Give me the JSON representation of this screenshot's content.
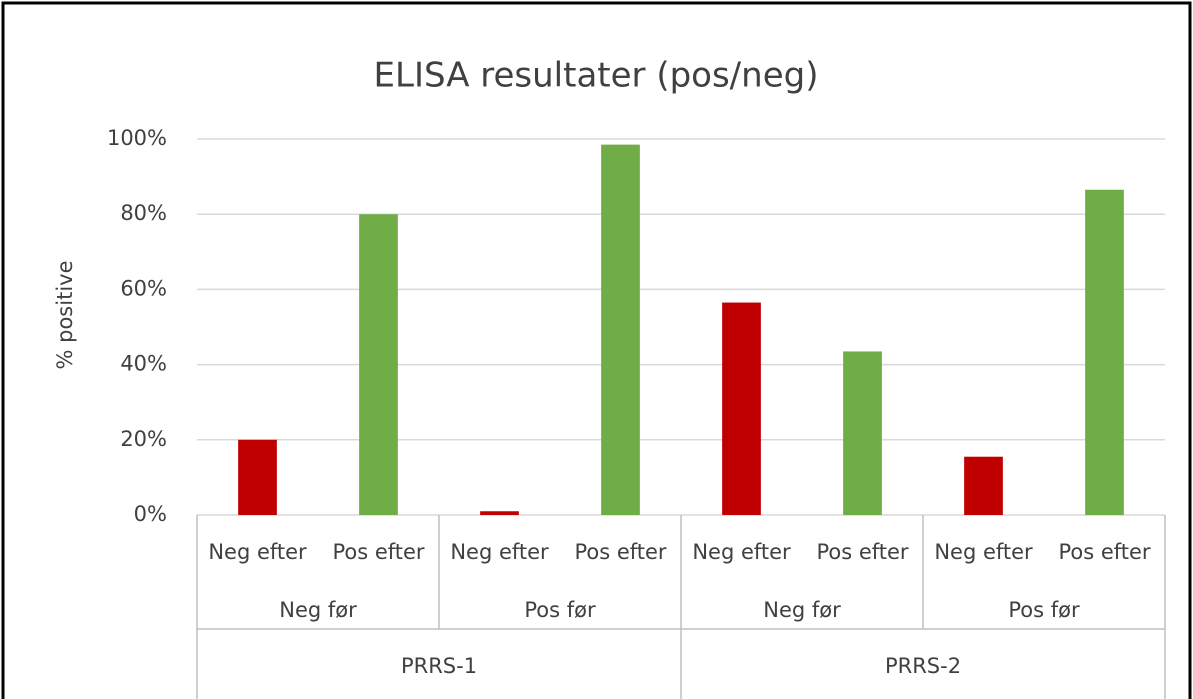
{
  "chart_data": {
    "type": "bar",
    "title": "ELISA resultater (pos/neg)",
    "y_label": "% positive",
    "groups": [
      {
        "name": "PRRS-1",
        "subgroups": [
          {
            "name": "Neg før",
            "categories": [
              "Neg efter",
              "Pos efter"
            ]
          },
          {
            "name": "Pos før",
            "categories": [
              "Neg efter",
              "Pos efter"
            ]
          }
        ]
      },
      {
        "name": "PRRS-2",
        "subgroups": [
          {
            "name": "Neg før",
            "categories": [
              "Neg efter",
              "Pos efter"
            ]
          },
          {
            "name": "Pos før",
            "categories": [
              "Neg efter",
              "Pos efter"
            ]
          }
        ]
      }
    ],
    "values": [
      20,
      80,
      1,
      98.5,
      56.5,
      43.5,
      15.5,
      86.5
    ],
    "colors": [
      "#c00000",
      "#70ad47",
      "#c00000",
      "#70ad47",
      "#c00000",
      "#70ad47",
      "#c00000",
      "#70ad47"
    ],
    "ylim": [
      0,
      100
    ],
    "yticks": [
      {
        "value": 0,
        "label": "0%"
      },
      {
        "value": 20,
        "label": "20%"
      },
      {
        "value": 40,
        "label": "40%"
      },
      {
        "value": 60,
        "label": "60%"
      },
      {
        "value": 80,
        "label": "80%"
      },
      {
        "value": 100,
        "label": "100%"
      }
    ],
    "grid": true
  }
}
